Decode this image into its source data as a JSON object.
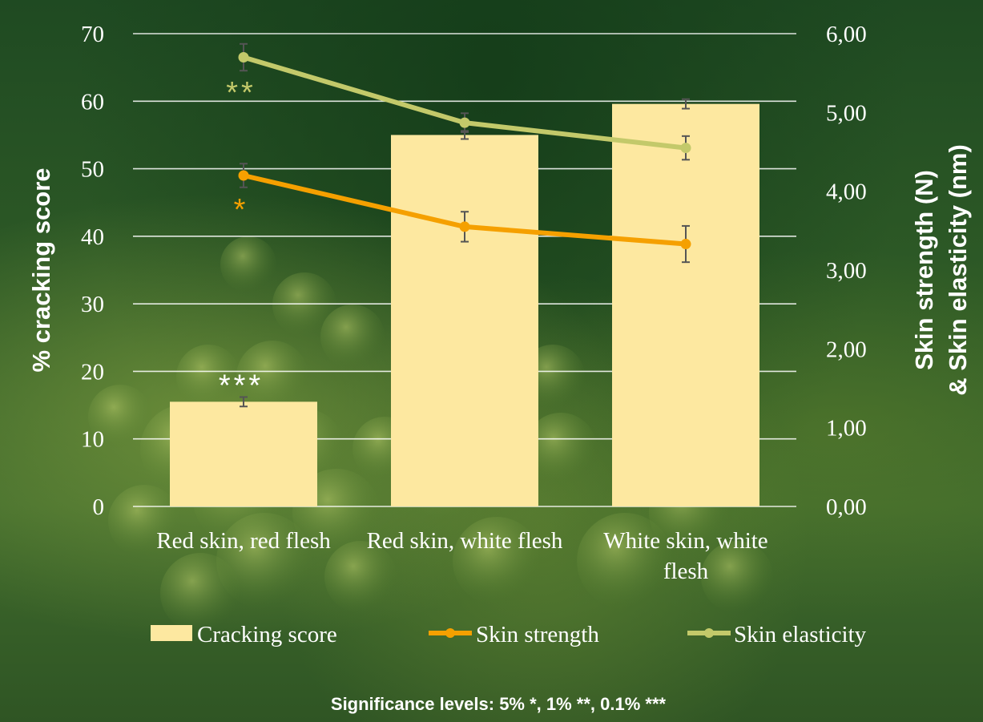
{
  "chart_data": {
    "type": "bar",
    "categories": [
      "Red skin, red flesh",
      "Red skin, white flesh",
      "White skin, white flesh"
    ],
    "series": [
      {
        "name": "Cracking score",
        "type": "bar",
        "axis": "left",
        "values": [
          15.5,
          55.0,
          59.6
        ],
        "error": [
          0.7,
          0.6,
          0.7
        ],
        "color": "#fde8a0",
        "significance": [
          "***",
          "",
          ""
        ],
        "significance_color": "#ffffff"
      },
      {
        "name": "Skin strength",
        "type": "line",
        "axis": "right",
        "values": [
          4.2,
          3.55,
          3.33
        ],
        "error": [
          0.15,
          0.19,
          0.23
        ],
        "color": "#f5a000",
        "significance": [
          "*",
          "",
          ""
        ],
        "significance_color": "#f5a000"
      },
      {
        "name": "Skin elasticity",
        "type": "line",
        "axis": "right",
        "values": [
          5.7,
          4.87,
          4.55
        ],
        "error": [
          0.17,
          0.12,
          0.15
        ],
        "color": "#c3c96a",
        "significance": [
          "**",
          "",
          ""
        ],
        "significance_color": "#c3c96a"
      }
    ],
    "ylabel": "% cracking score",
    "ylim": [
      0,
      70
    ],
    "yticks": [
      "0",
      "10",
      "20",
      "30",
      "40",
      "50",
      "60",
      "70"
    ],
    "y2label_line1": "Skin strength (N)",
    "y2label_line2": "& Skin elasticity (nm)",
    "y2lim": [
      0,
      6
    ],
    "y2ticks": [
      "0,00",
      "1,00",
      "2,00",
      "3,00",
      "4,00",
      "5,00",
      "6,00"
    ],
    "grid": true,
    "legend_position": "bottom",
    "footnote": "Significance levels:  5% *, 1% **, 0.1% ***"
  }
}
